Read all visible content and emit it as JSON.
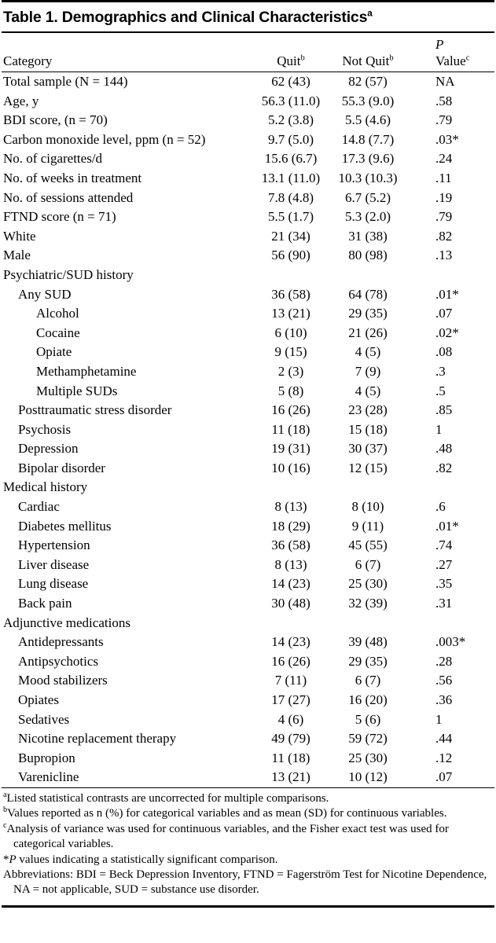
{
  "table": {
    "title": "Table 1. Demographics and Clinical Characteristics",
    "title_sup": "a",
    "columns": {
      "category": "Category",
      "quit": "Quit",
      "quit_sup": "b",
      "not_quit": "Not Quit",
      "not_quit_sup": "b",
      "p_line1": "P",
      "p_line2": "Value",
      "p_sup": "c"
    },
    "rows": [
      {
        "label": "Total sample (N = 144)",
        "indent": 0,
        "quit": "62 (43)",
        "not_quit": "82 (57)",
        "p": "NA"
      },
      {
        "label": "Age, y",
        "indent": 0,
        "quit": "56.3 (11.0)",
        "not_quit": "55.3 (9.0)",
        "p": ".58"
      },
      {
        "label": "BDI score, (n = 70)",
        "indent": 0,
        "quit": "5.2 (3.8)",
        "not_quit": "5.5 (4.6)",
        "p": ".79"
      },
      {
        "label": "Carbon monoxide level, ppm (n = 52)",
        "indent": 0,
        "quit": "9.7 (5.0)",
        "not_quit": "14.8 (7.7)",
        "p": ".03*"
      },
      {
        "label": "No. of cigarettes/d",
        "indent": 0,
        "quit": "15.6 (6.7)",
        "not_quit": "17.3 (9.6)",
        "p": ".24"
      },
      {
        "label": "No. of weeks in treatment",
        "indent": 0,
        "quit": "13.1 (11.0)",
        "not_quit": "10.3 (10.3)",
        "p": ".11"
      },
      {
        "label": "No. of sessions attended",
        "indent": 0,
        "quit": "7.8 (4.8)",
        "not_quit": "6.7 (5.2)",
        "p": ".19"
      },
      {
        "label": "FTND score (n = 71)",
        "indent": 0,
        "quit": "5.5 (1.7)",
        "not_quit": "5.3 (2.0)",
        "p": ".79"
      },
      {
        "label": "White",
        "indent": 0,
        "quit": "21 (34)",
        "not_quit": "31 (38)",
        "p": ".82"
      },
      {
        "label": "Male",
        "indent": 0,
        "quit": "56 (90)",
        "not_quit": "80 (98)",
        "p": ".13"
      },
      {
        "label": "Psychiatric/SUD history",
        "indent": 0,
        "quit": "",
        "not_quit": "",
        "p": ""
      },
      {
        "label": "Any SUD",
        "indent": 1,
        "quit": "36 (58)",
        "not_quit": "64 (78)",
        "p": ".01*"
      },
      {
        "label": "Alcohol",
        "indent": 2,
        "quit": "13 (21)",
        "not_quit": "29 (35)",
        "p": ".07"
      },
      {
        "label": "Cocaine",
        "indent": 2,
        "quit": "6 (10)",
        "not_quit": "21 (26)",
        "p": ".02*"
      },
      {
        "label": "Opiate",
        "indent": 2,
        "quit": "9 (15)",
        "not_quit": "4 (5)",
        "p": ".08"
      },
      {
        "label": "Methamphetamine",
        "indent": 2,
        "quit": "2 (3)",
        "not_quit": "7 (9)",
        "p": ".3"
      },
      {
        "label": "Multiple SUDs",
        "indent": 2,
        "quit": "5 (8)",
        "not_quit": "4 (5)",
        "p": ".5"
      },
      {
        "label": "Posttraumatic stress disorder",
        "indent": 1,
        "quit": "16 (26)",
        "not_quit": "23 (28)",
        "p": ".85"
      },
      {
        "label": "Psychosis",
        "indent": 1,
        "quit": "11 (18)",
        "not_quit": "15 (18)",
        "p": "1"
      },
      {
        "label": "Depression",
        "indent": 1,
        "quit": "19 (31)",
        "not_quit": "30 (37)",
        "p": ".48"
      },
      {
        "label": "Bipolar disorder",
        "indent": 1,
        "quit": "10 (16)",
        "not_quit": "12 (15)",
        "p": ".82"
      },
      {
        "label": "Medical history",
        "indent": 0,
        "quit": "",
        "not_quit": "",
        "p": ""
      },
      {
        "label": "Cardiac",
        "indent": 1,
        "quit": "8 (13)",
        "not_quit": "8 (10)",
        "p": ".6"
      },
      {
        "label": "Diabetes mellitus",
        "indent": 1,
        "quit": "18 (29)",
        "not_quit": "9 (11)",
        "p": ".01*"
      },
      {
        "label": "Hypertension",
        "indent": 1,
        "quit": "36 (58)",
        "not_quit": "45 (55)",
        "p": ".74"
      },
      {
        "label": "Liver disease",
        "indent": 1,
        "quit": "8 (13)",
        "not_quit": "6 (7)",
        "p": ".27"
      },
      {
        "label": "Lung disease",
        "indent": 1,
        "quit": "14 (23)",
        "not_quit": "25 (30)",
        "p": ".35"
      },
      {
        "label": "Back pain",
        "indent": 1,
        "quit": "30 (48)",
        "not_quit": "32 (39)",
        "p": ".31"
      },
      {
        "label": "Adjunctive medications",
        "indent": 0,
        "quit": "",
        "not_quit": "",
        "p": ""
      },
      {
        "label": "Antidepressants",
        "indent": 1,
        "quit": "14 (23)",
        "not_quit": "39 (48)",
        "p": ".003*"
      },
      {
        "label": "Antipsychotics",
        "indent": 1,
        "quit": "16 (26)",
        "not_quit": "29 (35)",
        "p": ".28"
      },
      {
        "label": "Mood stabilizers",
        "indent": 1,
        "quit": "7 (11)",
        "not_quit": "6 (7)",
        "p": ".56"
      },
      {
        "label": "Opiates",
        "indent": 1,
        "quit": "17 (27)",
        "not_quit": "16 (20)",
        "p": ".36"
      },
      {
        "label": "Sedatives",
        "indent": 1,
        "quit": "4 (6)",
        "not_quit": "5 (6)",
        "p": "1"
      },
      {
        "label": "Nicotine replacement therapy",
        "indent": 1,
        "quit": "49 (79)",
        "not_quit": "59 (72)",
        "p": ".44"
      },
      {
        "label": "Bupropion",
        "indent": 1,
        "quit": "11 (18)",
        "not_quit": "25 (30)",
        "p": ".12"
      },
      {
        "label": "Varenicline",
        "indent": 1,
        "quit": "13 (21)",
        "not_quit": "10 (12)",
        "p": ".07"
      }
    ],
    "footnotes": [
      {
        "marker": "a",
        "sup": true,
        "lead_italic": "",
        "text": "Listed statistical contrasts are uncorrected for multiple comparisons."
      },
      {
        "marker": "b",
        "sup": true,
        "lead_italic": "",
        "text": "Values reported as n (%) for categorical variables and as mean (SD) for continuous variables."
      },
      {
        "marker": "c",
        "sup": true,
        "lead_italic": "",
        "text": "Analysis of variance was used for continuous variables, and the Fisher exact test was used for categorical variables."
      },
      {
        "marker": "*",
        "sup": false,
        "lead_italic": "P",
        "text": " values indicating a statistically significant comparison."
      },
      {
        "marker": "",
        "sup": false,
        "lead_italic": "",
        "text": "Abbreviations: BDI = Beck Depression Inventory, FTND = Fagerström Test for Nicotine Dependence, NA = not applicable, SUD = substance use disorder."
      }
    ]
  }
}
